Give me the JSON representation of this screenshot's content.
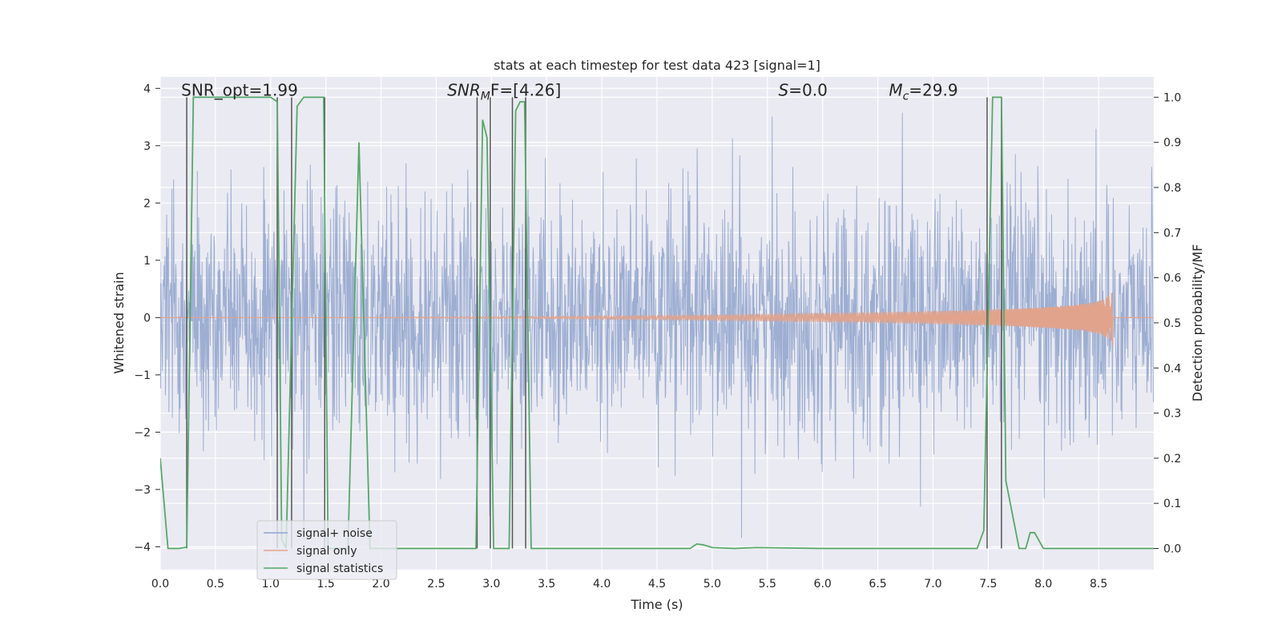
{
  "chart_data": {
    "type": "line",
    "title": "stats at each timestep for test data 423 [signal=1]",
    "xlabel": "Time (s)",
    "ylabel": "Whitened strain",
    "ylabel_right": "Detection probability/MF",
    "xlim": [
      0.0,
      9.0
    ],
    "ylim": [
      -4.4,
      4.2
    ],
    "ylim_right": [
      -0.047,
      1.045
    ],
    "x_ticks": [
      "0.0",
      "0.5",
      "1.0",
      "1.5",
      "2.0",
      "2.5",
      "3.0",
      "3.5",
      "4.0",
      "4.5",
      "5.0",
      "5.5",
      "6.0",
      "6.5",
      "7.0",
      "7.5",
      "8.0",
      "8.5"
    ],
    "y_ticks": [
      "−4",
      "−3",
      "−2",
      "−1",
      "0",
      "1",
      "2",
      "3",
      "4"
    ],
    "y_ticks_right": [
      "0.0",
      "0.1",
      "0.2",
      "0.3",
      "0.4",
      "0.5",
      "0.6",
      "0.7",
      "0.8",
      "0.9",
      "1.0"
    ],
    "grid": true,
    "legend_position": "lower-left",
    "annotations": [
      {
        "text": "SNR_opt=1.99",
        "x": 0.19,
        "y": 3.9
      },
      {
        "text": "SNR",
        "sub": "M",
        "text2": "F=[4.26]",
        "italic": true,
        "x": 2.6,
        "y": 3.9
      },
      {
        "text": "S",
        "sub": "",
        "text2": "=0.0",
        "italic": true,
        "x": 5.6,
        "y": 3.9
      },
      {
        "text": "M",
        "sub": "c",
        "text2": "=29.9",
        "italic": true,
        "x": 6.6,
        "y": 3.9
      }
    ],
    "series": [
      {
        "name": "signal+ noise",
        "color": "#8fa3cd",
        "kind": "noise",
        "noise_sigma": 1.0,
        "t_start": 0.0,
        "t_end": 9.0,
        "sample_rate": 256
      },
      {
        "name": "signal only",
        "color": "#e1a38c",
        "kind": "chirp",
        "merger_time": 8.63,
        "peak_amplitude": 0.5
      },
      {
        "name": "signal statistics",
        "color": "#55a868",
        "axis": "right",
        "x": [
          0.0,
          0.07,
          0.17,
          0.24,
          0.3,
          0.36,
          1.0,
          1.06,
          1.1,
          1.14,
          1.24,
          1.3,
          1.48,
          1.52,
          1.7,
          1.8,
          1.9,
          2.0,
          2.1,
          2.5,
          2.86,
          2.92,
          2.96,
          3.02,
          3.06,
          3.1,
          3.16,
          3.22,
          3.26,
          3.3,
          3.36,
          3.46,
          4.0,
          4.5,
          4.8,
          4.86,
          4.92,
          5.0,
          5.2,
          5.4,
          6.0,
          7.4,
          7.46,
          7.54,
          7.58,
          7.62,
          7.66,
          7.78,
          7.84,
          7.88,
          7.92,
          8.0,
          8.5,
          9.0
        ],
        "y": [
          0.2,
          0.0,
          0.0,
          0.003,
          1.0,
          1.0,
          1.0,
          0.99,
          0.02,
          0.0,
          0.98,
          1.0,
          1.0,
          0.0,
          0.0,
          0.9,
          0.0,
          0.0,
          0.0,
          0.0,
          0.0,
          0.95,
          0.91,
          0.0,
          0.0,
          0.0,
          0.0,
          0.97,
          0.99,
          0.99,
          0.0,
          0.0,
          0.0,
          0.0,
          0.0,
          0.01,
          0.008,
          0.002,
          0.0,
          0.002,
          0.0,
          0.0,
          0.04,
          1.0,
          1.0,
          1.0,
          0.15,
          0.0,
          0.0,
          0.035,
          0.035,
          0.0,
          0.0,
          0.0
        ]
      }
    ],
    "vertical_lines": [
      {
        "x": 0.24,
        "from": 0.0,
        "to": 1.0
      },
      {
        "x": 1.06,
        "from": 0.0,
        "to": 1.0
      },
      {
        "x": 1.19,
        "from": 0.0,
        "to": 1.0
      },
      {
        "x": 1.49,
        "from": 0.0,
        "to": 1.0
      },
      {
        "x": 2.87,
        "from": 0.0,
        "to": 1.0
      },
      {
        "x": 2.99,
        "from": 0.0,
        "to": 1.0
      },
      {
        "x": 3.19,
        "from": 0.0,
        "to": 1.0
      },
      {
        "x": 3.31,
        "from": 0.0,
        "to": 1.0
      },
      {
        "x": 7.49,
        "from": 0.0,
        "to": 1.0
      },
      {
        "x": 7.62,
        "from": 0.0,
        "to": 1.0
      }
    ]
  }
}
